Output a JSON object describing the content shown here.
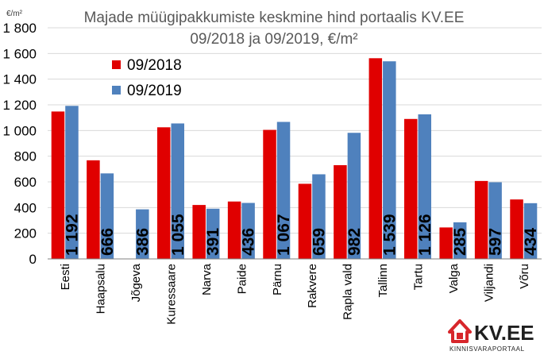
{
  "chart_data": {
    "type": "bar",
    "title_line1": "Majade müügipakkumiste keskmine hind portaalis KV.EE",
    "title_line2": "09/2018 ja 09/2019, €/m²",
    "unit_label": "€/m²",
    "ylim": [
      0,
      1800
    ],
    "ytick_labels": [
      "0",
      "200",
      "400",
      "600",
      "800",
      "1 000",
      "1 200",
      "1 400",
      "1 600",
      "1 800"
    ],
    "grid": true,
    "legend_position": "top-left",
    "categories": [
      "Eesti",
      "Haapsalu",
      "Jõgeva",
      "Kuressaare",
      "Narva",
      "Paide",
      "Pärnu",
      "Rakvere",
      "Rapla vald",
      "Tallinn",
      "Tartu",
      "Valga",
      "Viljandi",
      "Võru"
    ],
    "series": [
      {
        "name": "09/2018",
        "color": "#e00000",
        "values": [
          1148,
          768,
          null,
          1025,
          420,
          447,
          1005,
          585,
          730,
          1563,
          1090,
          245,
          607,
          463
        ]
      },
      {
        "name": "09/2019",
        "color": "#4f81bd",
        "values": [
          1192,
          666,
          386,
          1055,
          391,
          436,
          1067,
          659,
          982,
          1539,
          1126,
          285,
          597,
          434
        ]
      }
    ],
    "data_labels": [
      "1 192",
      "666",
      "386",
      "1 055",
      "391",
      "436",
      "1 067",
      "659",
      "982",
      "1 539",
      "1 126",
      "285",
      "597",
      "434"
    ]
  },
  "logo": {
    "brand": "KV.EE",
    "tagline": "KINNISVARAPORTAAL",
    "icon": "house-icon",
    "color": "#d7262b"
  }
}
